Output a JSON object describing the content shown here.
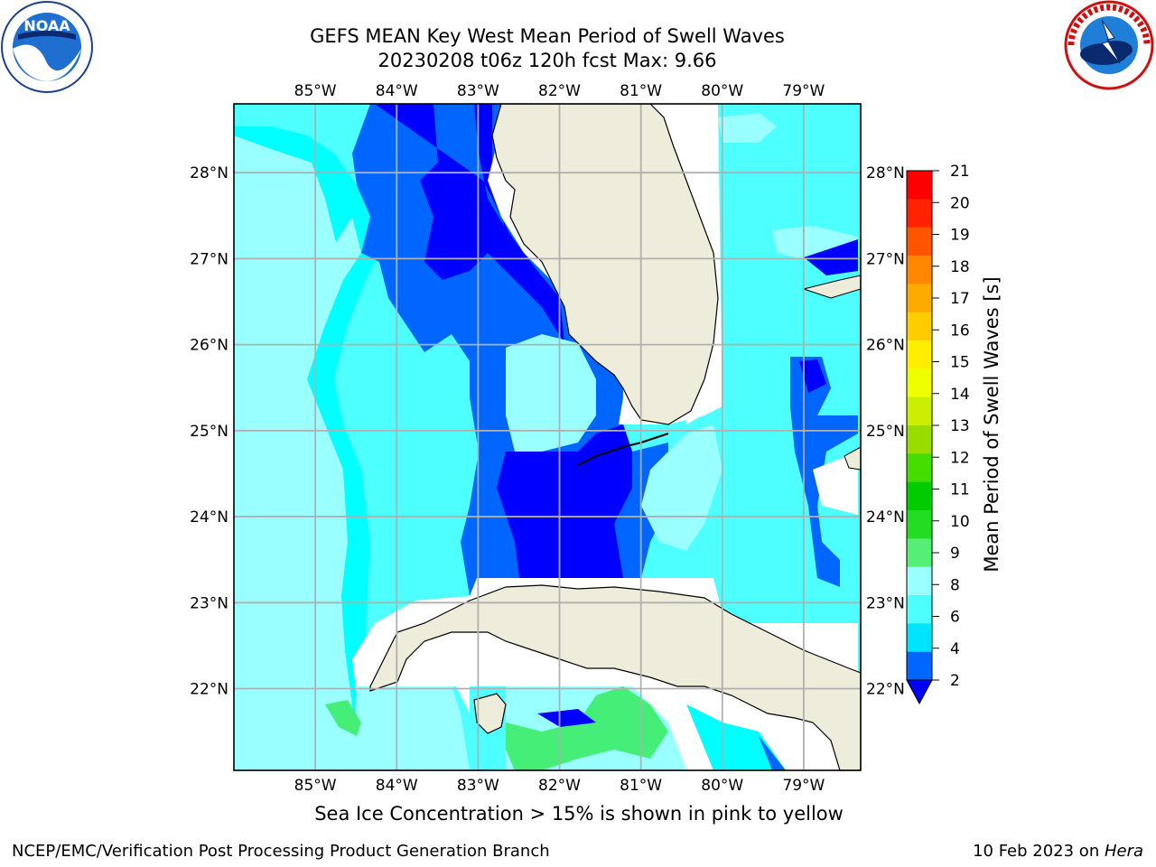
{
  "title_line1": "GEFS MEAN Key West Mean Period of Swell Waves",
  "title_line2": "20230208 t06z 120h fcst   Max: 9.66",
  "logos": {
    "noaa": {
      "icon": "noaa-logo",
      "text": "NOAA"
    },
    "nws": {
      "icon": "nws-logo"
    }
  },
  "map_data": {
    "lon_range": [
      -86,
      -78.3
    ],
    "lat_range": [
      21.05,
      28.8
    ],
    "lon_ticks": [
      "85°W",
      "84°W",
      "83°W",
      "82°W",
      "81°W",
      "80°W",
      "79°W"
    ],
    "lat_ticks": [
      "28°N",
      "27°N",
      "26°N",
      "25°N",
      "24°N",
      "23°N",
      "22°N"
    ],
    "grid": true,
    "regions": [
      "Florida peninsula",
      "Florida Keys",
      "Cuba",
      "Bahamas"
    ],
    "colors": {
      "land": "#eeeddc",
      "lightblue": "#4dffff",
      "cyan": "#00ffff",
      "midblue": "#0066ff",
      "deepblue": "#0000ff",
      "teal": "#99ffff",
      "green": "#44ee77"
    }
  },
  "colorbar": {
    "label": "Mean Period of Swell Waves [s]",
    "ticks": [
      "2",
      "4",
      "6",
      "8",
      "9",
      "10",
      "11",
      "12",
      "13",
      "14",
      "15",
      "16",
      "17",
      "18",
      "19",
      "20",
      "21"
    ],
    "colors": [
      "#0066ff",
      "#00e5ff",
      "#4dffff",
      "#99ffff",
      "#55ee77",
      "#22dd22",
      "#00cc00",
      "#44dd00",
      "#99dd00",
      "#ccee00",
      "#eeff00",
      "#ffee00",
      "#ffcc00",
      "#ffaa00",
      "#ff8800",
      "#ff5500",
      "#ff2200",
      "#ff0000"
    ],
    "extend_color": "#0000ff"
  },
  "bottom_note": "Sea Ice Concentration > 15% is shown in pink to yellow",
  "footer": {
    "left": "NCEP/EMC/Verification Post Processing Product Generation Branch",
    "right_date": "10 Feb 2023 on ",
    "right_host": "Hera"
  }
}
